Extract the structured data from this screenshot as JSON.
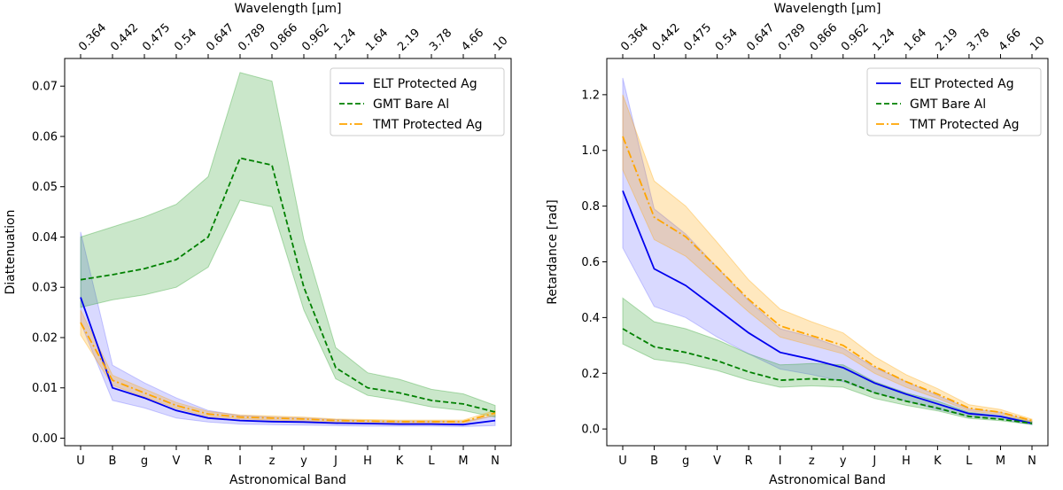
{
  "chart_data": [
    {
      "type": "line",
      "panel": "left",
      "xlabel": "Astronomical Band",
      "ylabel": "Diattenuation",
      "top_xlabel": "Wavelength [µm]",
      "categories": [
        "U",
        "B",
        "g",
        "V",
        "R",
        "I",
        "z",
        "y",
        "J",
        "H",
        "K",
        "L",
        "M",
        "N"
      ],
      "top_tick_labels": [
        "0.364",
        "0.442",
        "0.475",
        "0.54",
        "0.647",
        "0.789",
        "0.866",
        "0.962",
        "1.24",
        "1.64",
        "2.19",
        "3.78",
        "4.66",
        "10"
      ],
      "ylim": [
        -0.0015,
        0.0755
      ],
      "yticks": [
        0.0,
        0.01,
        0.02,
        0.03,
        0.04,
        0.05,
        0.06,
        0.07
      ],
      "ytick_labels": [
        "0.00",
        "0.01",
        "0.02",
        "0.03",
        "0.04",
        "0.05",
        "0.06",
        "0.07"
      ],
      "legend_position": "top-right",
      "series": [
        {
          "name": "ELT Protected Ag",
          "color": "#0000ee",
          "style": "solid",
          "values": [
            0.028,
            0.01,
            0.008,
            0.0055,
            0.004,
            0.0035,
            0.0033,
            0.0032,
            0.003,
            0.0029,
            0.0028,
            0.0028,
            0.0027,
            0.0035
          ],
          "band_low": [
            0.023,
            0.0075,
            0.006,
            0.004,
            0.0032,
            0.0028,
            0.0027,
            0.0026,
            0.0025,
            0.0024,
            0.0024,
            0.0024,
            0.0023,
            0.0025
          ],
          "band_high": [
            0.041,
            0.0145,
            0.011,
            0.008,
            0.0055,
            0.0045,
            0.0042,
            0.004,
            0.0037,
            0.0035,
            0.0034,
            0.0034,
            0.0033,
            0.0045
          ],
          "band_color": "#6666ff"
        },
        {
          "name": "GMT Bare Al",
          "color": "#008000",
          "style": "dashed",
          "values": [
            0.0315,
            0.0325,
            0.0337,
            0.0355,
            0.04,
            0.0557,
            0.0543,
            0.03,
            0.014,
            0.01,
            0.009,
            0.0075,
            0.0068,
            0.0052
          ],
          "band_low": [
            0.026,
            0.0275,
            0.0285,
            0.03,
            0.034,
            0.0473,
            0.046,
            0.0255,
            0.0118,
            0.0085,
            0.0075,
            0.0062,
            0.0055,
            0.0042
          ],
          "band_high": [
            0.04,
            0.042,
            0.044,
            0.0465,
            0.052,
            0.0727,
            0.071,
            0.0395,
            0.018,
            0.013,
            0.0117,
            0.0097,
            0.0088,
            0.0065
          ],
          "band_color": "#2ca02c"
        },
        {
          "name": "TMT Protected Ag",
          "color": "#ffa500",
          "style": "dashdot",
          "values": [
            0.023,
            0.0115,
            0.009,
            0.0065,
            0.0048,
            0.0042,
            0.004,
            0.0038,
            0.0035,
            0.0034,
            0.0033,
            0.0033,
            0.0033,
            0.005
          ],
          "band_low": [
            0.0205,
            0.0105,
            0.0082,
            0.0059,
            0.0043,
            0.0038,
            0.0036,
            0.0034,
            0.0032,
            0.0031,
            0.003,
            0.003,
            0.003,
            0.0045
          ],
          "band_high": [
            0.0255,
            0.0125,
            0.0098,
            0.0071,
            0.0053,
            0.0046,
            0.0044,
            0.0042,
            0.0038,
            0.0037,
            0.0036,
            0.0036,
            0.0036,
            0.0055
          ],
          "band_color": "#ffa500"
        }
      ]
    },
    {
      "type": "line",
      "panel": "right",
      "xlabel": "Astronomical Band",
      "ylabel": "Retardance [rad]",
      "top_xlabel": "Wavelength [µm]",
      "categories": [
        "U",
        "B",
        "g",
        "V",
        "R",
        "I",
        "z",
        "y",
        "J",
        "H",
        "K",
        "L",
        "M",
        "N"
      ],
      "top_tick_labels": [
        "0.364",
        "0.442",
        "0.475",
        "0.54",
        "0.647",
        "0.789",
        "0.866",
        "0.962",
        "1.24",
        "1.64",
        "2.19",
        "3.78",
        "4.66",
        "10"
      ],
      "ylim": [
        -0.06,
        1.33
      ],
      "yticks": [
        0.0,
        0.2,
        0.4,
        0.6,
        0.8,
        1.0,
        1.2
      ],
      "ytick_labels": [
        "0.0",
        "0.2",
        "0.4",
        "0.6",
        "0.8",
        "1.0",
        "1.2"
      ],
      "legend_position": "top-right",
      "series": [
        {
          "name": "ELT Protected Ag",
          "color": "#0000ee",
          "style": "solid",
          "values": [
            0.855,
            0.575,
            0.515,
            0.43,
            0.345,
            0.275,
            0.25,
            0.22,
            0.165,
            0.125,
            0.09,
            0.055,
            0.045,
            0.02
          ],
          "band_low": [
            0.65,
            0.44,
            0.4,
            0.33,
            0.27,
            0.215,
            0.195,
            0.17,
            0.13,
            0.1,
            0.07,
            0.045,
            0.035,
            0.015
          ],
          "band_high": [
            1.26,
            0.79,
            0.7,
            0.58,
            0.46,
            0.36,
            0.33,
            0.29,
            0.22,
            0.17,
            0.12,
            0.072,
            0.06,
            0.028
          ],
          "band_color": "#6666ff"
        },
        {
          "name": "GMT Bare Al",
          "color": "#008000",
          "style": "dashed",
          "values": [
            0.36,
            0.295,
            0.275,
            0.245,
            0.205,
            0.175,
            0.18,
            0.175,
            0.13,
            0.1,
            0.075,
            0.045,
            0.035,
            0.02
          ],
          "band_low": [
            0.305,
            0.25,
            0.235,
            0.21,
            0.175,
            0.15,
            0.155,
            0.15,
            0.11,
            0.085,
            0.065,
            0.038,
            0.03,
            0.016
          ],
          "band_high": [
            0.47,
            0.385,
            0.36,
            0.32,
            0.27,
            0.23,
            0.235,
            0.23,
            0.17,
            0.13,
            0.1,
            0.06,
            0.047,
            0.026
          ],
          "band_color": "#2ca02c"
        },
        {
          "name": "TMT Protected Ag",
          "color": "#ffa500",
          "style": "dashdot",
          "values": [
            1.05,
            0.76,
            0.69,
            0.58,
            0.465,
            0.37,
            0.335,
            0.3,
            0.225,
            0.17,
            0.125,
            0.075,
            0.06,
            0.03
          ],
          "band_low": [
            0.93,
            0.68,
            0.62,
            0.52,
            0.42,
            0.33,
            0.3,
            0.27,
            0.2,
            0.15,
            0.11,
            0.065,
            0.052,
            0.025
          ],
          "band_high": [
            1.2,
            0.89,
            0.8,
            0.67,
            0.535,
            0.43,
            0.385,
            0.345,
            0.26,
            0.195,
            0.145,
            0.087,
            0.07,
            0.035
          ],
          "band_color": "#ffa500"
        }
      ]
    }
  ]
}
